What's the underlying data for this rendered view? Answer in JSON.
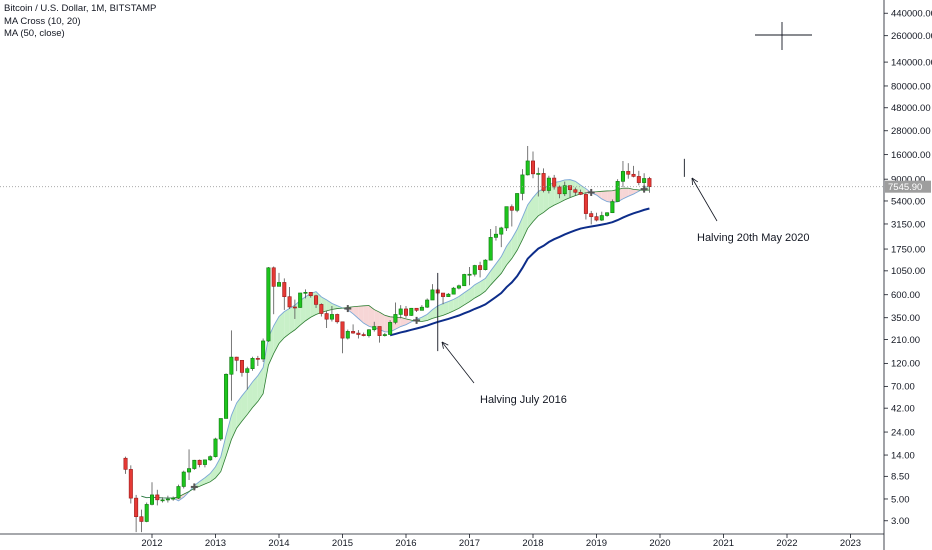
{
  "legend": {
    "title": "Bitcoin / U.S. Dollar, 1M, BITSTAMP",
    "ma_cross": "MA Cross (10, 20)",
    "ma": "MA (50, close)"
  },
  "annotations": {
    "halving_2016": "Halving July 2016",
    "halving_2020": "Halving 20th May 2020"
  },
  "colors": {
    "up": "#26a69a",
    "up_fill": "#1dc41d",
    "down": "#e53935",
    "ma10": "#7aa7d6",
    "ma20": "#2e7d32",
    "ma50": "#0d2d8a",
    "cloud_up": "#c8f0c8",
    "cloud_down": "#f7d6d6",
    "price_line": "#9e9e9e",
    "price_label_bg": "#9e9e9e"
  },
  "chart_data": {
    "type": "candlestick",
    "y_scale": "log",
    "ylim": [
      2.2,
      600000
    ],
    "y_ticks": [
      "440000.00",
      "260000.00",
      "140000.00",
      "80000.00",
      "48000.00",
      "28000.00",
      "16000.00",
      "9000.00",
      "5400.00",
      "3150.00",
      "1750.00",
      "1050.00",
      "600.00",
      "350.00",
      "210.00",
      "120.00",
      "70.00",
      "42.00",
      "24.00",
      "14.00",
      "8.50",
      "5.00",
      "3.00"
    ],
    "x_ticks": [
      "2012",
      "2013",
      "2014",
      "2015",
      "2016",
      "2017",
      "2018",
      "2019",
      "2020",
      "2021",
      "2022",
      "2023"
    ],
    "current_price": "7545.90",
    "candles": [
      {
        "d": "2011-08",
        "o": 13,
        "h": 13.5,
        "l": 9,
        "c": 10
      },
      {
        "d": "2011-09",
        "o": 10,
        "h": 11,
        "l": 4.5,
        "c": 5.1
      },
      {
        "d": "2011-10",
        "o": 5.1,
        "h": 5.5,
        "l": 2.3,
        "c": 3.3
      },
      {
        "d": "2011-11",
        "o": 3.3,
        "h": 3.9,
        "l": 2.3,
        "c": 2.95
      },
      {
        "d": "2011-12",
        "o": 2.95,
        "h": 4.6,
        "l": 2.9,
        "c": 4.4
      },
      {
        "d": "2012-01",
        "o": 4.4,
        "h": 7.4,
        "l": 4.3,
        "c": 5.5
      },
      {
        "d": "2012-02",
        "o": 5.5,
        "h": 6.2,
        "l": 4.3,
        "c": 4.9
      },
      {
        "d": "2012-03",
        "o": 4.9,
        "h": 5.2,
        "l": 4.6,
        "c": 4.9
      },
      {
        "d": "2012-04",
        "o": 4.9,
        "h": 5.4,
        "l": 4.6,
        "c": 5.0
      },
      {
        "d": "2012-05",
        "o": 5.0,
        "h": 5.3,
        "l": 4.8,
        "c": 5.1
      },
      {
        "d": "2012-06",
        "o": 5.1,
        "h": 7.0,
        "l": 5.0,
        "c": 6.7
      },
      {
        "d": "2012-07",
        "o": 6.7,
        "h": 9.7,
        "l": 6.4,
        "c": 9.4
      },
      {
        "d": "2012-08",
        "o": 9.4,
        "h": 16,
        "l": 7.8,
        "c": 10.2
      },
      {
        "d": "2012-09",
        "o": 10.2,
        "h": 12.5,
        "l": 9.9,
        "c": 12.4
      },
      {
        "d": "2012-10",
        "o": 12.4,
        "h": 12.6,
        "l": 10.5,
        "c": 11.2
      },
      {
        "d": "2012-11",
        "o": 11.2,
        "h": 12.6,
        "l": 10.5,
        "c": 12.5
      },
      {
        "d": "2012-12",
        "o": 12.5,
        "h": 13.9,
        "l": 12.2,
        "c": 13.5
      },
      {
        "d": "2013-01",
        "o": 13.5,
        "h": 21,
        "l": 13.2,
        "c": 20.4
      },
      {
        "d": "2013-02",
        "o": 20.4,
        "h": 33,
        "l": 19.5,
        "c": 33
      },
      {
        "d": "2013-03",
        "o": 33,
        "h": 95,
        "l": 33,
        "c": 93
      },
      {
        "d": "2013-04",
        "o": 93,
        "h": 260,
        "l": 50,
        "c": 139
      },
      {
        "d": "2013-05",
        "o": 139,
        "h": 140,
        "l": 100,
        "c": 129
      },
      {
        "d": "2013-06",
        "o": 129,
        "h": 130,
        "l": 88,
        "c": 97
      },
      {
        "d": "2013-07",
        "o": 97,
        "h": 111,
        "l": 65,
        "c": 106
      },
      {
        "d": "2013-08",
        "o": 106,
        "h": 140,
        "l": 101,
        "c": 135
      },
      {
        "d": "2013-09",
        "o": 135,
        "h": 143,
        "l": 113,
        "c": 133
      },
      {
        "d": "2013-10",
        "o": 133,
        "h": 215,
        "l": 124,
        "c": 203
      },
      {
        "d": "2013-11",
        "o": 203,
        "h": 1150,
        "l": 198,
        "c": 1128
      },
      {
        "d": "2013-12",
        "o": 1128,
        "h": 1163,
        "l": 380,
        "c": 730
      },
      {
        "d": "2014-01",
        "o": 730,
        "h": 1000,
        "l": 730,
        "c": 800
      },
      {
        "d": "2014-02",
        "o": 800,
        "h": 880,
        "l": 420,
        "c": 573
      },
      {
        "d": "2014-03",
        "o": 573,
        "h": 720,
        "l": 430,
        "c": 450
      },
      {
        "d": "2014-04",
        "o": 450,
        "h": 535,
        "l": 340,
        "c": 445
      },
      {
        "d": "2014-05",
        "o": 445,
        "h": 625,
        "l": 440,
        "c": 625
      },
      {
        "d": "2014-06",
        "o": 625,
        "h": 680,
        "l": 550,
        "c": 635
      },
      {
        "d": "2014-07",
        "o": 635,
        "h": 635,
        "l": 560,
        "c": 586
      },
      {
        "d": "2014-08",
        "o": 586,
        "h": 600,
        "l": 440,
        "c": 478
      },
      {
        "d": "2014-09",
        "o": 478,
        "h": 490,
        "l": 360,
        "c": 386
      },
      {
        "d": "2014-10",
        "o": 386,
        "h": 410,
        "l": 275,
        "c": 338
      },
      {
        "d": "2014-11",
        "o": 338,
        "h": 460,
        "l": 320,
        "c": 378
      },
      {
        "d": "2014-12",
        "o": 378,
        "h": 385,
        "l": 305,
        "c": 318
      },
      {
        "d": "2015-01",
        "o": 318,
        "h": 320,
        "l": 152,
        "c": 217
      },
      {
        "d": "2015-02",
        "o": 217,
        "h": 265,
        "l": 210,
        "c": 254
      },
      {
        "d": "2015-03",
        "o": 254,
        "h": 299,
        "l": 240,
        "c": 244
      },
      {
        "d": "2015-04",
        "o": 244,
        "h": 262,
        "l": 215,
        "c": 236
      },
      {
        "d": "2015-05",
        "o": 236,
        "h": 247,
        "l": 226,
        "c": 230
      },
      {
        "d": "2015-06",
        "o": 230,
        "h": 268,
        "l": 220,
        "c": 264
      },
      {
        "d": "2015-07",
        "o": 264,
        "h": 318,
        "l": 253,
        "c": 285
      },
      {
        "d": "2015-08",
        "o": 285,
        "h": 285,
        "l": 195,
        "c": 230
      },
      {
        "d": "2015-09",
        "o": 230,
        "h": 245,
        "l": 225,
        "c": 236
      },
      {
        "d": "2015-10",
        "o": 236,
        "h": 330,
        "l": 236,
        "c": 314
      },
      {
        "d": "2015-11",
        "o": 314,
        "h": 500,
        "l": 300,
        "c": 378
      },
      {
        "d": "2015-12",
        "o": 378,
        "h": 470,
        "l": 345,
        "c": 430
      },
      {
        "d": "2016-01",
        "o": 430,
        "h": 460,
        "l": 350,
        "c": 369
      },
      {
        "d": "2016-02",
        "o": 369,
        "h": 440,
        "l": 365,
        "c": 437
      },
      {
        "d": "2016-03",
        "o": 437,
        "h": 440,
        "l": 400,
        "c": 416
      },
      {
        "d": "2016-04",
        "o": 416,
        "h": 470,
        "l": 415,
        "c": 448
      },
      {
        "d": "2016-05",
        "o": 448,
        "h": 550,
        "l": 440,
        "c": 530
      },
      {
        "d": "2016-06",
        "o": 530,
        "h": 770,
        "l": 530,
        "c": 672
      },
      {
        "d": "2016-07",
        "o": 672,
        "h": 700,
        "l": 600,
        "c": 624
      },
      {
        "d": "2016-08",
        "o": 624,
        "h": 625,
        "l": 480,
        "c": 574
      },
      {
        "d": "2016-09",
        "o": 574,
        "h": 625,
        "l": 570,
        "c": 608
      },
      {
        "d": "2016-10",
        "o": 608,
        "h": 720,
        "l": 605,
        "c": 700
      },
      {
        "d": "2016-11",
        "o": 700,
        "h": 760,
        "l": 680,
        "c": 740
      },
      {
        "d": "2016-12",
        "o": 740,
        "h": 980,
        "l": 740,
        "c": 965
      },
      {
        "d": "2017-01",
        "o": 965,
        "h": 1150,
        "l": 750,
        "c": 970
      },
      {
        "d": "2017-02",
        "o": 970,
        "h": 1210,
        "l": 920,
        "c": 1190
      },
      {
        "d": "2017-03",
        "o": 1190,
        "h": 1300,
        "l": 900,
        "c": 1080
      },
      {
        "d": "2017-04",
        "o": 1080,
        "h": 1380,
        "l": 1060,
        "c": 1350
      },
      {
        "d": "2017-05",
        "o": 1350,
        "h": 2800,
        "l": 1340,
        "c": 2300
      },
      {
        "d": "2017-06",
        "o": 2300,
        "h": 3000,
        "l": 2130,
        "c": 2480
      },
      {
        "d": "2017-07",
        "o": 2480,
        "h": 2950,
        "l": 1830,
        "c": 2870
      },
      {
        "d": "2017-08",
        "o": 2870,
        "h": 4750,
        "l": 2670,
        "c": 4730
      },
      {
        "d": "2017-09",
        "o": 4730,
        "h": 4980,
        "l": 2970,
        "c": 4340
      },
      {
        "d": "2017-10",
        "o": 4340,
        "h": 6470,
        "l": 4150,
        "c": 6440
      },
      {
        "d": "2017-11",
        "o": 6440,
        "h": 11400,
        "l": 5500,
        "c": 9950
      },
      {
        "d": "2017-12",
        "o": 9950,
        "h": 19600,
        "l": 9800,
        "c": 13800
      },
      {
        "d": "2018-01",
        "o": 13800,
        "h": 17200,
        "l": 9200,
        "c": 10200
      },
      {
        "d": "2018-02",
        "o": 10200,
        "h": 11800,
        "l": 6000,
        "c": 10300
      },
      {
        "d": "2018-03",
        "o": 10300,
        "h": 11600,
        "l": 6600,
        "c": 6900
      },
      {
        "d": "2018-04",
        "o": 6900,
        "h": 9750,
        "l": 6450,
        "c": 9240
      },
      {
        "d": "2018-05",
        "o": 9240,
        "h": 9950,
        "l": 7050,
        "c": 7500
      },
      {
        "d": "2018-06",
        "o": 7500,
        "h": 7750,
        "l": 5750,
        "c": 6390
      },
      {
        "d": "2018-07",
        "o": 6390,
        "h": 8500,
        "l": 6050,
        "c": 7730
      },
      {
        "d": "2018-08",
        "o": 7730,
        "h": 7780,
        "l": 5880,
        "c": 7030
      },
      {
        "d": "2018-09",
        "o": 7030,
        "h": 7400,
        "l": 6100,
        "c": 6620
      },
      {
        "d": "2018-10",
        "o": 6620,
        "h": 7050,
        "l": 6200,
        "c": 6300
      },
      {
        "d": "2018-11",
        "o": 6300,
        "h": 6620,
        "l": 3500,
        "c": 4020
      },
      {
        "d": "2018-12",
        "o": 4020,
        "h": 4280,
        "l": 3120,
        "c": 3740
      },
      {
        "d": "2019-01",
        "o": 3740,
        "h": 4100,
        "l": 3350,
        "c": 3450
      },
      {
        "d": "2019-02",
        "o": 3450,
        "h": 4200,
        "l": 3380,
        "c": 3840
      },
      {
        "d": "2019-03",
        "o": 3840,
        "h": 4150,
        "l": 3730,
        "c": 4100
      },
      {
        "d": "2019-04",
        "o": 4100,
        "h": 5600,
        "l": 4070,
        "c": 5330
      },
      {
        "d": "2019-05",
        "o": 5330,
        "h": 9000,
        "l": 5300,
        "c": 8550
      },
      {
        "d": "2019-06",
        "o": 8550,
        "h": 13800,
        "l": 7500,
        "c": 10800
      },
      {
        "d": "2019-07",
        "o": 10800,
        "h": 13100,
        "l": 9100,
        "c": 10100
      },
      {
        "d": "2019-08",
        "o": 10100,
        "h": 12300,
        "l": 9400,
        "c": 9600
      },
      {
        "d": "2019-09",
        "o": 9600,
        "h": 10950,
        "l": 7800,
        "c": 8300
      },
      {
        "d": "2019-10",
        "o": 8300,
        "h": 10350,
        "l": 7300,
        "c": 9150
      },
      {
        "d": "2019-11",
        "o": 9150,
        "h": 9500,
        "l": 6550,
        "c": 7546
      }
    ]
  }
}
